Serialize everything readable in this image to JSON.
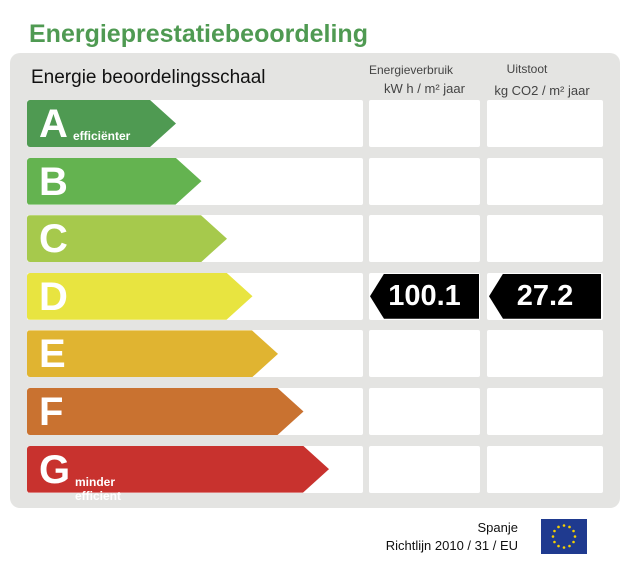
{
  "title": "Energieprestatiebeoordeling",
  "scale_label": "Energie beoordelingsschaal",
  "col_energy": {
    "label": "Energieverbruik",
    "unit": "kW h / m² jaar"
  },
  "col_emission": {
    "label": "Uitstoot",
    "unit": "kg CO2 / m² jaar"
  },
  "ratings": [
    {
      "letter": "A",
      "sub": "efficiënter",
      "color": "#4f9a52"
    },
    {
      "letter": "B",
      "sub": "",
      "color": "#64b350"
    },
    {
      "letter": "C",
      "sub": "",
      "color": "#a6c94c"
    },
    {
      "letter": "D",
      "sub": "",
      "color": "#e8e440"
    },
    {
      "letter": "E",
      "sub": "",
      "color": "#e0b431"
    },
    {
      "letter": "F",
      "sub": "",
      "color": "#c97230"
    },
    {
      "letter": "G",
      "sub": "minder efficient",
      "color": "#c8322e"
    }
  ],
  "current": {
    "rating": "D",
    "energy": "100.1",
    "emission": "27.2"
  },
  "footer": {
    "country": "Spanje",
    "directive": "Richtlijn 2010 / 31 / EU"
  },
  "eu_flag_icon": "eu-flag-icon"
}
